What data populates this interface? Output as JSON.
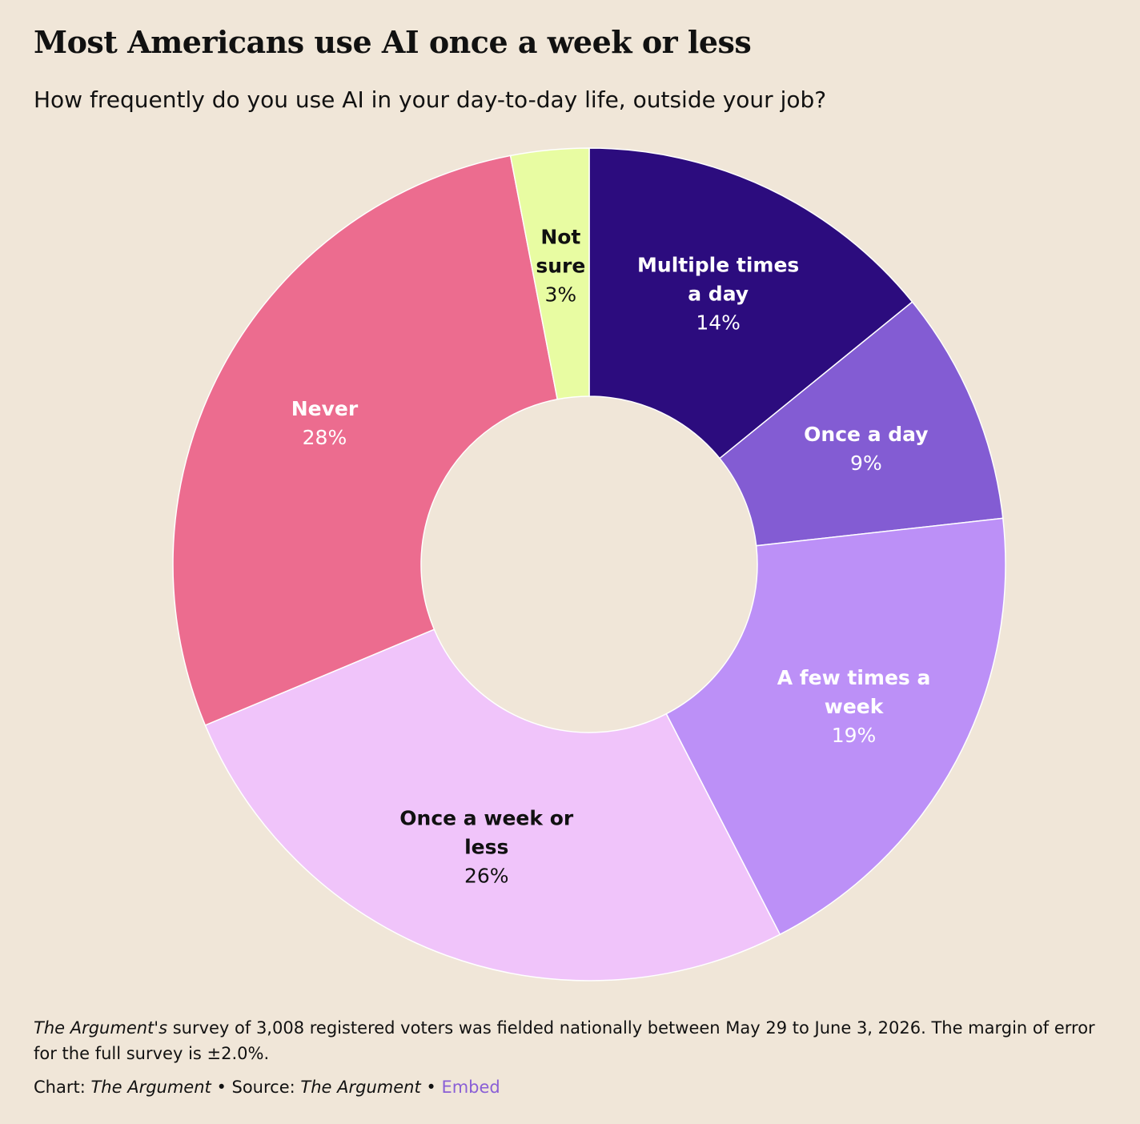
{
  "header": {
    "title": "Most Americans use AI once a week or less",
    "subtitle": "How frequently do you use AI in your day-to-day life, outside your job?"
  },
  "chart_data": {
    "type": "pie",
    "variant": "donut",
    "slices": [
      {
        "label_lines": [
          "Multiple times",
          "a day"
        ],
        "pct_label": "14%",
        "value": 14,
        "color": "#2c0c7e",
        "text_color": "#ffffff"
      },
      {
        "label_lines": [
          "Once a day"
        ],
        "pct_label": "9%",
        "value": 9,
        "color": "#835cd3",
        "text_color": "#ffffff"
      },
      {
        "label_lines": [
          "A few times a",
          "week"
        ],
        "pct_label": "19%",
        "value": 19,
        "color": "#bc90f7",
        "text_color": "#ffffff"
      },
      {
        "label_lines": [
          "Once a week or",
          "less"
        ],
        "pct_label": "26%",
        "value": 26,
        "color": "#f0c4fa",
        "text_color": "#111111"
      },
      {
        "label_lines": [
          "Never"
        ],
        "pct_label": "28%",
        "value": 28,
        "color": "#ec6c8f",
        "text_color": "#ffffff"
      },
      {
        "label_lines": [
          "Not",
          "sure"
        ],
        "pct_label": "3%",
        "value": 3,
        "color": "#e8fca2",
        "text_color": "#111111"
      }
    ]
  },
  "footer": {
    "note_italic": "The Argument's",
    "note_rest": " survey of 3,008 registered voters was fielded nationally between May 29 to June 3, 2026. The margin of error for the full survey is ±2.0%.",
    "chart_prefix": "Chart: ",
    "chart_source": "The Argument",
    "source_prefix": " • Source: ",
    "source_name": "The Argument",
    "sep": " • ",
    "embed_label": "Embed"
  }
}
